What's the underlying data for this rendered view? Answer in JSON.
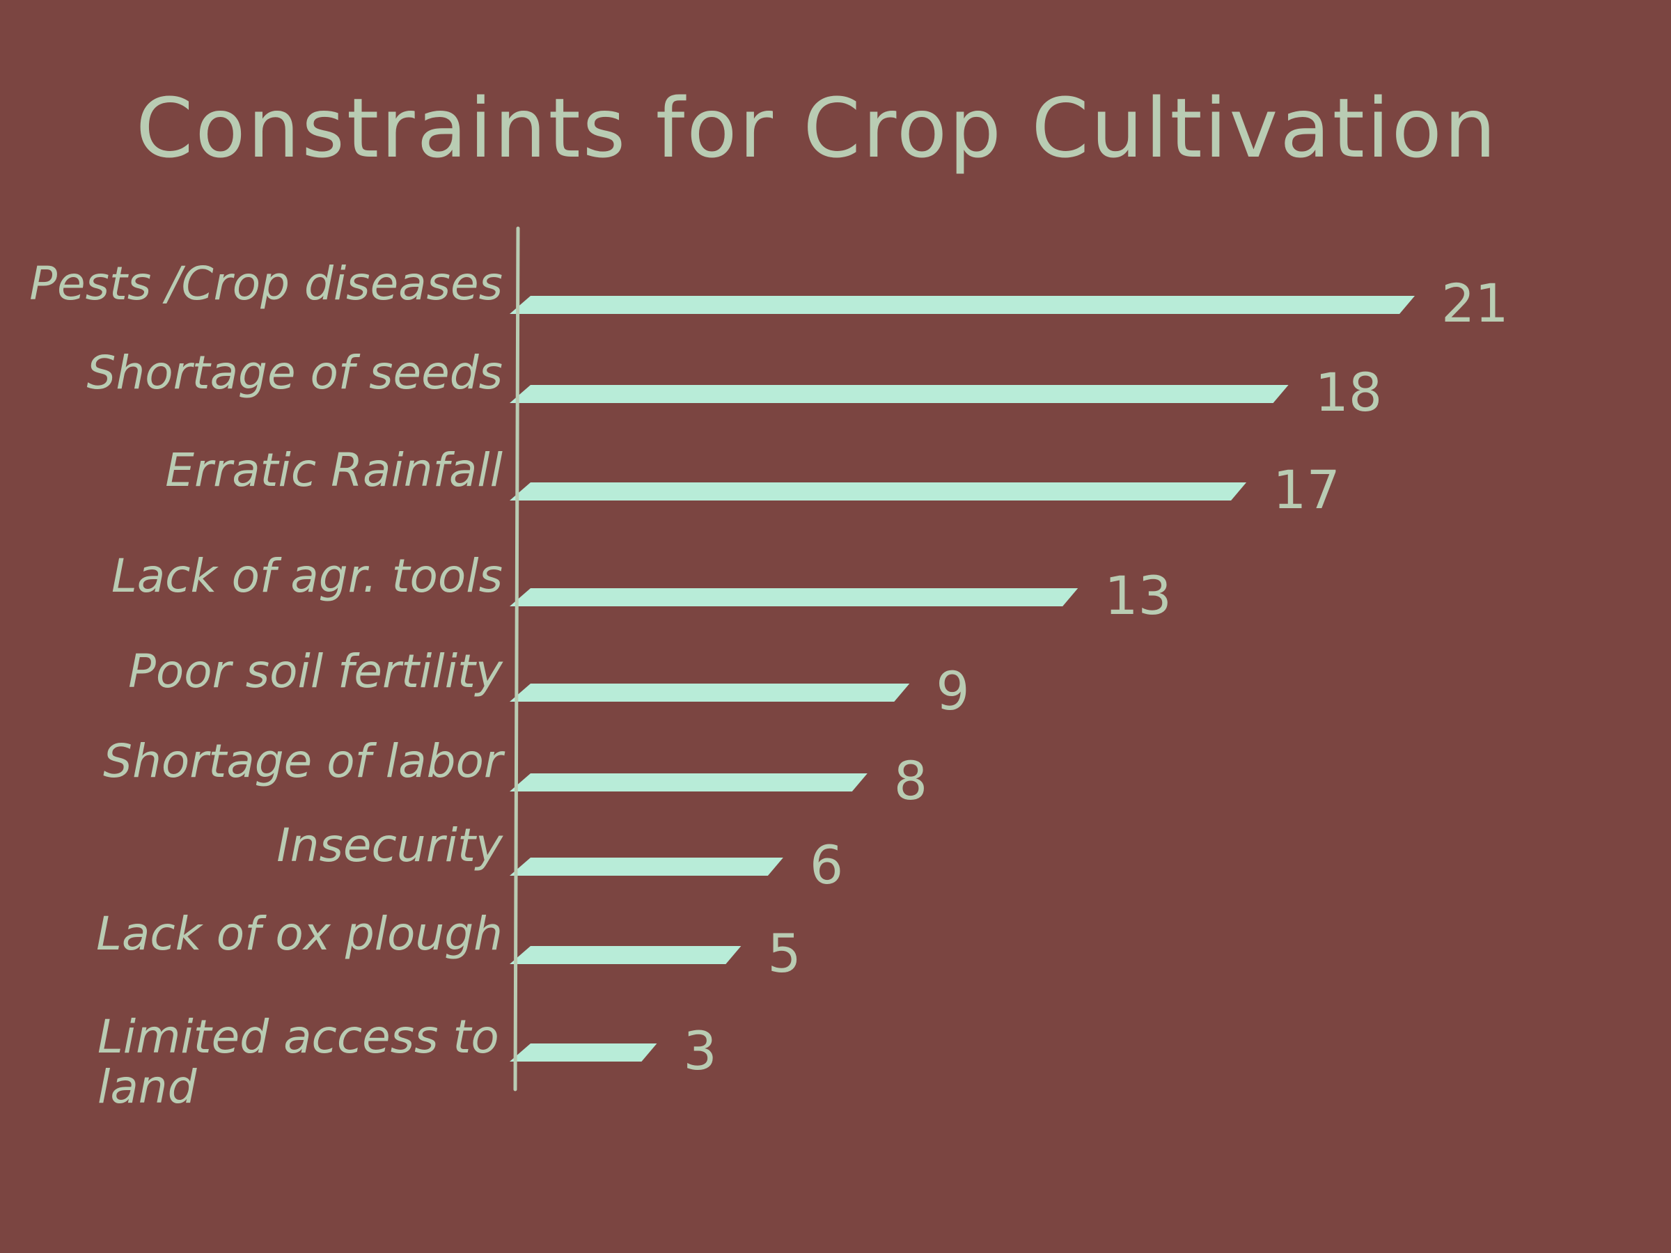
{
  "chart_data": {
    "type": "bar",
    "orientation": "horizontal",
    "title": "Constraints for Crop Cultivation",
    "categories": [
      "Pests /Crop diseases",
      "Shortage of seeds",
      "Erratic Rainfall",
      "Lack of agr. tools",
      "Poor soil fertility",
      "Shortage of labor",
      "Insecurity",
      "Lack of ox plough",
      "Limited access to land"
    ],
    "values": [
      21,
      18,
      17,
      13,
      9,
      8,
      6,
      5,
      3
    ],
    "data_labels": [
      "21",
      "18",
      "17",
      "13",
      "9",
      "8",
      "6",
      "5",
      "3"
    ],
    "xlim": [
      0,
      21
    ],
    "grid": false,
    "legend": "none",
    "colors": {
      "background": "#7b4541",
      "bar": "#b8ecd8",
      "text": "#b9ccb3",
      "axis": "#b9ccb3"
    }
  }
}
